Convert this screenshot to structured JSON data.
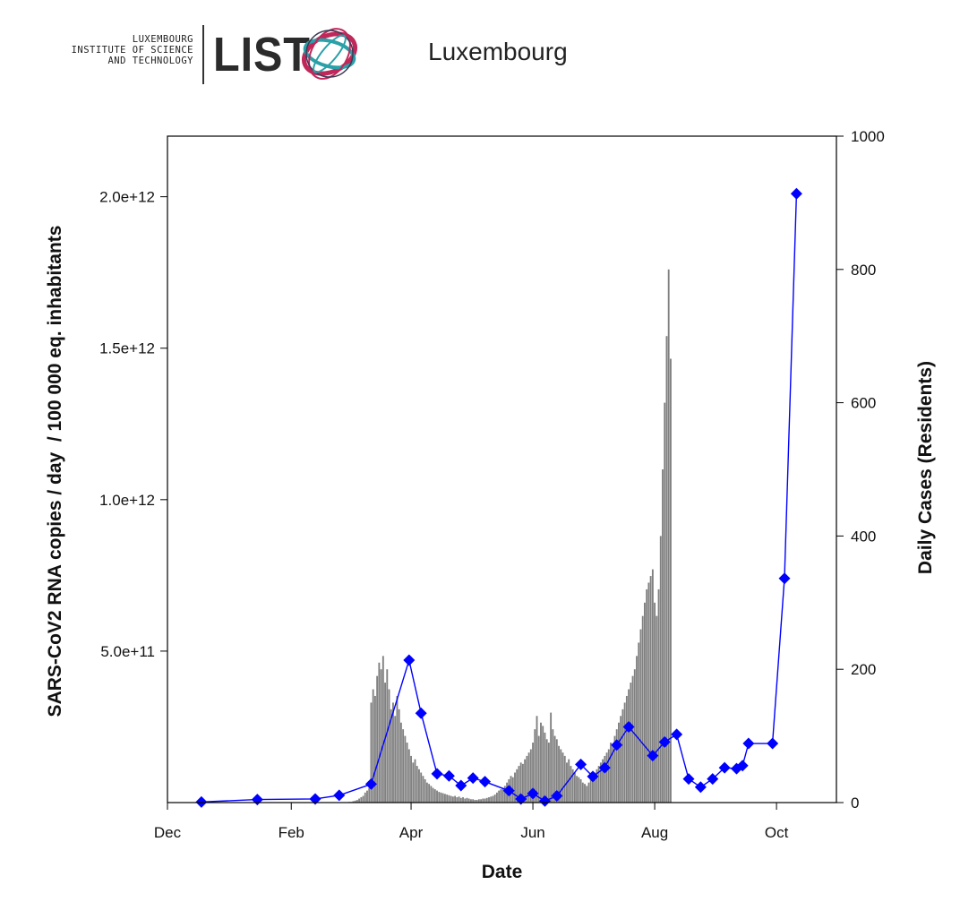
{
  "header": {
    "logo_lines": [
      "LUXEMBOURG",
      "INSTITUTE OF SCIENCE",
      "AND TECHNOLOGY"
    ],
    "logo_mark": "LIST",
    "title": "Luxembourg"
  },
  "chart_data": {
    "type": "bar",
    "title": "Luxembourg",
    "xlabel": "Date",
    "ylabel_left": "SARS-CoV2 RNA copies / day  / 100 000 eq. inhabitants",
    "ylabel_right": "Daily Cases (Residents)",
    "x_ticks": [
      "Dec",
      "Feb",
      "Apr",
      "Jun",
      "Aug",
      "Oct"
    ],
    "x_tick_days": [
      0,
      62,
      122,
      183,
      244,
      305
    ],
    "xlim_days": [
      0,
      335
    ],
    "y_left_ticks": [
      "5.0e+11",
      "1.0e+12",
      "1.5e+12",
      "2.0e+12"
    ],
    "y_left_tick_values": [
      500000000000.0,
      1000000000000.0,
      1500000000000.0,
      2000000000000.0
    ],
    "y_left_lim": [
      0,
      2200000000000.0
    ],
    "y_right_ticks": [
      "0",
      "200",
      "400",
      "600",
      "800",
      "1000"
    ],
    "y_right_tick_values": [
      0,
      200,
      400,
      600,
      800,
      1000
    ],
    "y_right_lim": [
      0,
      1000
    ],
    "grid": false,
    "series": [
      {
        "kind": "bars",
        "axis": "right",
        "color": "#808080",
        "start_day": 90,
        "values": [
          0,
          1,
          1,
          2,
          3,
          4,
          6,
          8,
          10,
          15,
          18,
          22,
          150,
          170,
          160,
          190,
          210,
          200,
          220,
          180,
          200,
          170,
          140,
          150,
          130,
          160,
          140,
          120,
          110,
          100,
          90,
          80,
          70,
          60,
          65,
          55,
          50,
          45,
          40,
          35,
          30,
          28,
          25,
          22,
          20,
          18,
          16,
          15,
          14,
          13,
          12,
          11,
          10,
          9,
          10,
          8,
          9,
          7,
          8,
          6,
          7,
          6,
          5,
          5,
          4,
          4,
          5,
          5,
          6,
          6,
          7,
          8,
          9,
          10,
          12,
          15,
          18,
          20,
          22,
          25,
          30,
          35,
          40,
          38,
          45,
          50,
          55,
          60,
          58,
          65,
          70,
          75,
          80,
          90,
          110,
          130,
          100,
          120,
          115,
          105,
          95,
          90,
          135,
          110,
          100,
          95,
          85,
          80,
          75,
          70,
          60,
          65,
          55,
          50,
          45,
          40,
          38,
          35,
          30,
          28,
          25,
          30,
          35,
          40,
          45,
          50,
          55,
          60,
          65,
          70,
          75,
          80,
          90,
          85,
          100,
          110,
          120,
          130,
          140,
          150,
          160,
          170,
          180,
          190,
          200,
          220,
          240,
          260,
          280,
          300,
          320,
          330,
          340,
          350,
          300,
          280,
          320,
          400,
          500,
          600,
          700,
          800,
          666
        ]
      },
      {
        "kind": "line",
        "axis": "left",
        "name": "",
        "color": "#0000ff",
        "points": [
          {
            "day": 17,
            "value": 2000000000.0
          },
          {
            "day": 45,
            "value": 10000000000.0
          },
          {
            "day": 74,
            "value": 12000000000.0
          },
          {
            "day": 86,
            "value": 24000000000.0
          },
          {
            "day": 102,
            "value": 61000000000.0
          },
          {
            "day": 121,
            "value": 470000000000.0
          },
          {
            "day": 127,
            "value": 295000000000.0
          },
          {
            "day": 135,
            "value": 95000000000.0
          },
          {
            "day": 141,
            "value": 88000000000.0
          },
          {
            "day": 147,
            "value": 56000000000.0
          },
          {
            "day": 153,
            "value": 81000000000.0
          },
          {
            "day": 159,
            "value": 69000000000.0
          },
          {
            "day": 171,
            "value": 39000000000.0
          },
          {
            "day": 177,
            "value": 12000000000.0
          },
          {
            "day": 183,
            "value": 30000000000.0
          },
          {
            "day": 189,
            "value": 5000000000.0
          },
          {
            "day": 195,
            "value": 22000000000.0
          },
          {
            "day": 207,
            "value": 126000000000.0
          },
          {
            "day": 213,
            "value": 86000000000.0
          },
          {
            "day": 219,
            "value": 115000000000.0
          },
          {
            "day": 225,
            "value": 190000000000.0
          },
          {
            "day": 231,
            "value": 250000000000.0
          },
          {
            "day": 243,
            "value": 155000000000.0
          },
          {
            "day": 249,
            "value": 200000000000.0
          },
          {
            "day": 255,
            "value": 225000000000.0
          },
          {
            "day": 261,
            "value": 78000000000.0
          },
          {
            "day": 267,
            "value": 51000000000.0
          },
          {
            "day": 273,
            "value": 78000000000.0
          },
          {
            "day": 279,
            "value": 115000000000.0
          },
          {
            "day": 285,
            "value": 112000000000.0
          },
          {
            "day": 288,
            "value": 122000000000.0
          },
          {
            "day": 291,
            "value": 195000000000.0
          },
          {
            "day": 303,
            "value": 195000000000.0
          },
          {
            "day": 309,
            "value": 740000000000.0
          },
          {
            "day": 315,
            "value": 2010000000000.0
          }
        ]
      }
    ]
  }
}
